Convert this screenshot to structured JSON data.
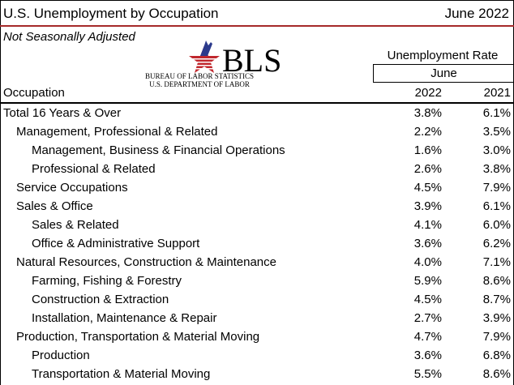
{
  "header": {
    "title": "U.S. Unemployment by Occupation",
    "date": "June 2022",
    "subtitle": "Not Seasonally Adjusted"
  },
  "logo": {
    "text": "BLS",
    "line1": "BUREAU OF LABOR STATISTICS",
    "line2": "U.S. DEPARTMENT OF LABOR",
    "colors": {
      "red": "#c0272d",
      "blue": "#2b3a8c"
    }
  },
  "columns": {
    "group": "Unemployment Rate",
    "month": "June",
    "occupation": "Occupation",
    "year1": "2022",
    "year2": "2021"
  },
  "accent_color": "#a52a2a",
  "chart_data": {
    "type": "table",
    "rows": [
      {
        "label": "Total 16 Years & Over",
        "level": 0,
        "v2022": "3.8%",
        "v2021": "6.1%"
      },
      {
        "label": "Management, Professional & Related",
        "level": 1,
        "v2022": "2.2%",
        "v2021": "3.5%"
      },
      {
        "label": "Management, Business & Financial Operations",
        "level": 2,
        "v2022": "1.6%",
        "v2021": "3.0%"
      },
      {
        "label": "Professional & Related",
        "level": 2,
        "v2022": "2.6%",
        "v2021": "3.8%"
      },
      {
        "label": "Service Occupations",
        "level": 1,
        "v2022": "4.5%",
        "v2021": "7.9%"
      },
      {
        "label": "Sales & Office",
        "level": 1,
        "v2022": "3.9%",
        "v2021": "6.1%"
      },
      {
        "label": "Sales & Related",
        "level": 2,
        "v2022": "4.1%",
        "v2021": "6.0%"
      },
      {
        "label": "Office & Administrative Support",
        "level": 2,
        "v2022": "3.6%",
        "v2021": "6.2%"
      },
      {
        "label": "Natural Resources, Construction & Maintenance",
        "level": 1,
        "v2022": "4.0%",
        "v2021": "7.1%"
      },
      {
        "label": "Farming, Fishing & Forestry",
        "level": 2,
        "v2022": "5.9%",
        "v2021": "8.6%"
      },
      {
        "label": "Construction & Extraction",
        "level": 2,
        "v2022": "4.5%",
        "v2021": "8.7%"
      },
      {
        "label": "Installation, Maintenance & Repair",
        "level": 2,
        "v2022": "2.7%",
        "v2021": "3.9%"
      },
      {
        "label": "Production, Transportation & Material Moving",
        "level": 1,
        "v2022": "4.7%",
        "v2021": "7.9%"
      },
      {
        "label": "Production",
        "level": 2,
        "v2022": "3.6%",
        "v2021": "6.8%"
      },
      {
        "label": "Transportation & Material Moving",
        "level": 2,
        "v2022": "5.5%",
        "v2021": "8.6%"
      }
    ]
  }
}
